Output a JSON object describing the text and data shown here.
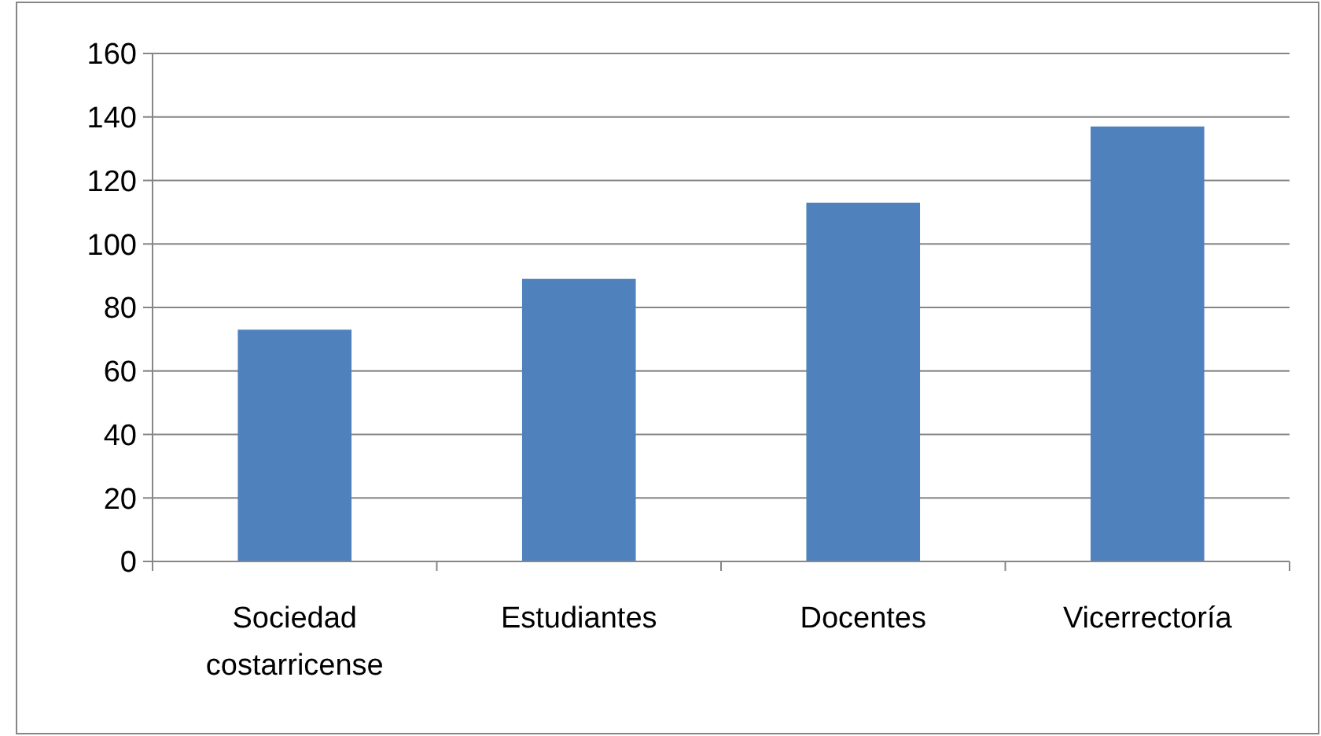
{
  "chart_data": {
    "type": "bar",
    "categories": [
      "Sociedad costarricense",
      "Estudiantes",
      "Docentes",
      "Vicerrectoría"
    ],
    "values": [
      73,
      89,
      113,
      137
    ],
    "color": "#4f81bd",
    "ylim": [
      0,
      160
    ],
    "yticks": [
      0,
      20,
      40,
      60,
      80,
      100,
      120,
      140,
      160
    ],
    "grid": "y"
  }
}
